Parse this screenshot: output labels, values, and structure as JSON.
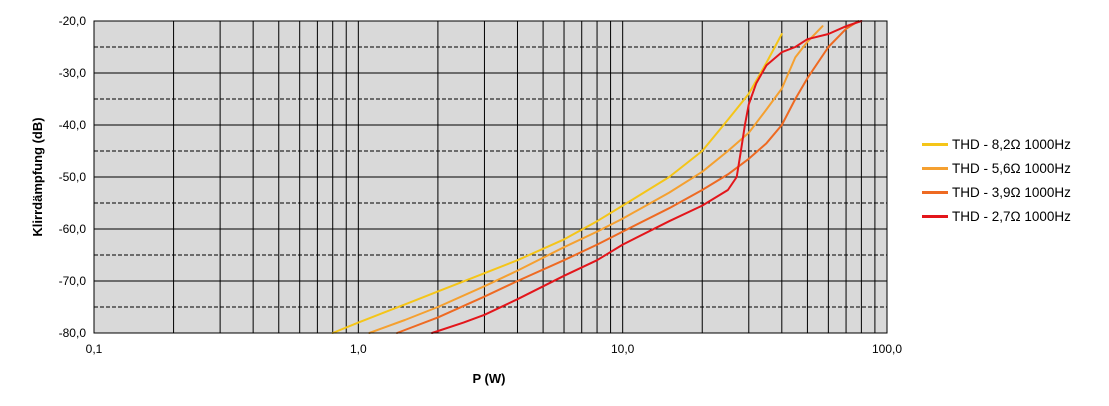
{
  "chart_data": {
    "type": "line",
    "x_scale": "log",
    "xlabel": "P (W)",
    "ylabel": "Klirrdämpfung (dB)",
    "xlim": [
      0.1,
      100.0
    ],
    "ylim": [
      -80,
      -20
    ],
    "x_ticks": [
      0.1,
      1.0,
      10.0,
      100.0
    ],
    "x_tick_labels": [
      "0,1",
      "1,0",
      "10,0",
      "100,0"
    ],
    "y_ticks": [
      -20,
      -30,
      -40,
      -50,
      -60,
      -70,
      -80
    ],
    "y_tick_labels": [
      "-20,0",
      "-30,0",
      "-40,0",
      "-50,0",
      "-60,0",
      "-70,0",
      "-80,0"
    ],
    "grid": true,
    "plot_background": "#d9d9d9",
    "legend_position": "right",
    "series": [
      {
        "name": "THD - 8,2Ω 1000Hz",
        "color": "#f5c518",
        "points": [
          [
            0.8,
            -80
          ],
          [
            1.0,
            -78
          ],
          [
            1.5,
            -74.5
          ],
          [
            2.0,
            -72
          ],
          [
            3.0,
            -68.5
          ],
          [
            4.0,
            -66
          ],
          [
            6.0,
            -62
          ],
          [
            8.0,
            -58.5
          ],
          [
            10.0,
            -55.5
          ],
          [
            15.0,
            -50
          ],
          [
            20.0,
            -45
          ],
          [
            25.0,
            -39
          ],
          [
            30.0,
            -34
          ],
          [
            35.0,
            -28
          ],
          [
            40.0,
            -22.5
          ]
        ]
      },
      {
        "name": "THD - 5,6Ω 1000Hz",
        "color": "#f5a030",
        "points": [
          [
            1.1,
            -80
          ],
          [
            1.5,
            -77.5
          ],
          [
            2.0,
            -75
          ],
          [
            3.0,
            -71
          ],
          [
            4.0,
            -68
          ],
          [
            6.0,
            -63.5
          ],
          [
            8.0,
            -60.5
          ],
          [
            10.0,
            -58
          ],
          [
            15.0,
            -53
          ],
          [
            20.0,
            -49
          ],
          [
            25.0,
            -45
          ],
          [
            30.0,
            -41.5
          ],
          [
            35.0,
            -37
          ],
          [
            40.0,
            -33
          ],
          [
            45.0,
            -27
          ],
          [
            50.0,
            -24
          ],
          [
            57.0,
            -21
          ]
        ]
      },
      {
        "name": "THD - 3,9Ω 1000Hz",
        "color": "#ee6a22",
        "points": [
          [
            1.4,
            -80
          ],
          [
            2.0,
            -77
          ],
          [
            3.0,
            -73
          ],
          [
            4.0,
            -70
          ],
          [
            6.0,
            -66
          ],
          [
            8.0,
            -63
          ],
          [
            10.0,
            -60.5
          ],
          [
            15.0,
            -56
          ],
          [
            20.0,
            -52.5
          ],
          [
            25.0,
            -49.5
          ],
          [
            30.0,
            -46.5
          ],
          [
            35.0,
            -43.5
          ],
          [
            40.0,
            -40
          ],
          [
            45.0,
            -35
          ],
          [
            50.0,
            -31
          ],
          [
            60.0,
            -25
          ],
          [
            70.0,
            -21.5
          ],
          [
            78.0,
            -20
          ]
        ]
      },
      {
        "name": "THD - 2,7Ω 1000Hz",
        "color": "#e3161b",
        "points": [
          [
            1.9,
            -80
          ],
          [
            2.5,
            -78
          ],
          [
            3.0,
            -76.5
          ],
          [
            4.0,
            -73.5
          ],
          [
            6.0,
            -69
          ],
          [
            8.0,
            -66
          ],
          [
            10.0,
            -63
          ],
          [
            15.0,
            -58.5
          ],
          [
            20.0,
            -55.5
          ],
          [
            25.0,
            -52.5
          ],
          [
            27.0,
            -50
          ],
          [
            28.0,
            -45
          ],
          [
            29.0,
            -40
          ],
          [
            30.0,
            -36
          ],
          [
            32.0,
            -32
          ],
          [
            35.0,
            -28.5
          ],
          [
            40.0,
            -26
          ],
          [
            45.0,
            -25
          ],
          [
            50.0,
            -23.5
          ],
          [
            60.0,
            -22.5
          ],
          [
            70.0,
            -21
          ],
          [
            80.0,
            -20
          ]
        ]
      }
    ]
  }
}
